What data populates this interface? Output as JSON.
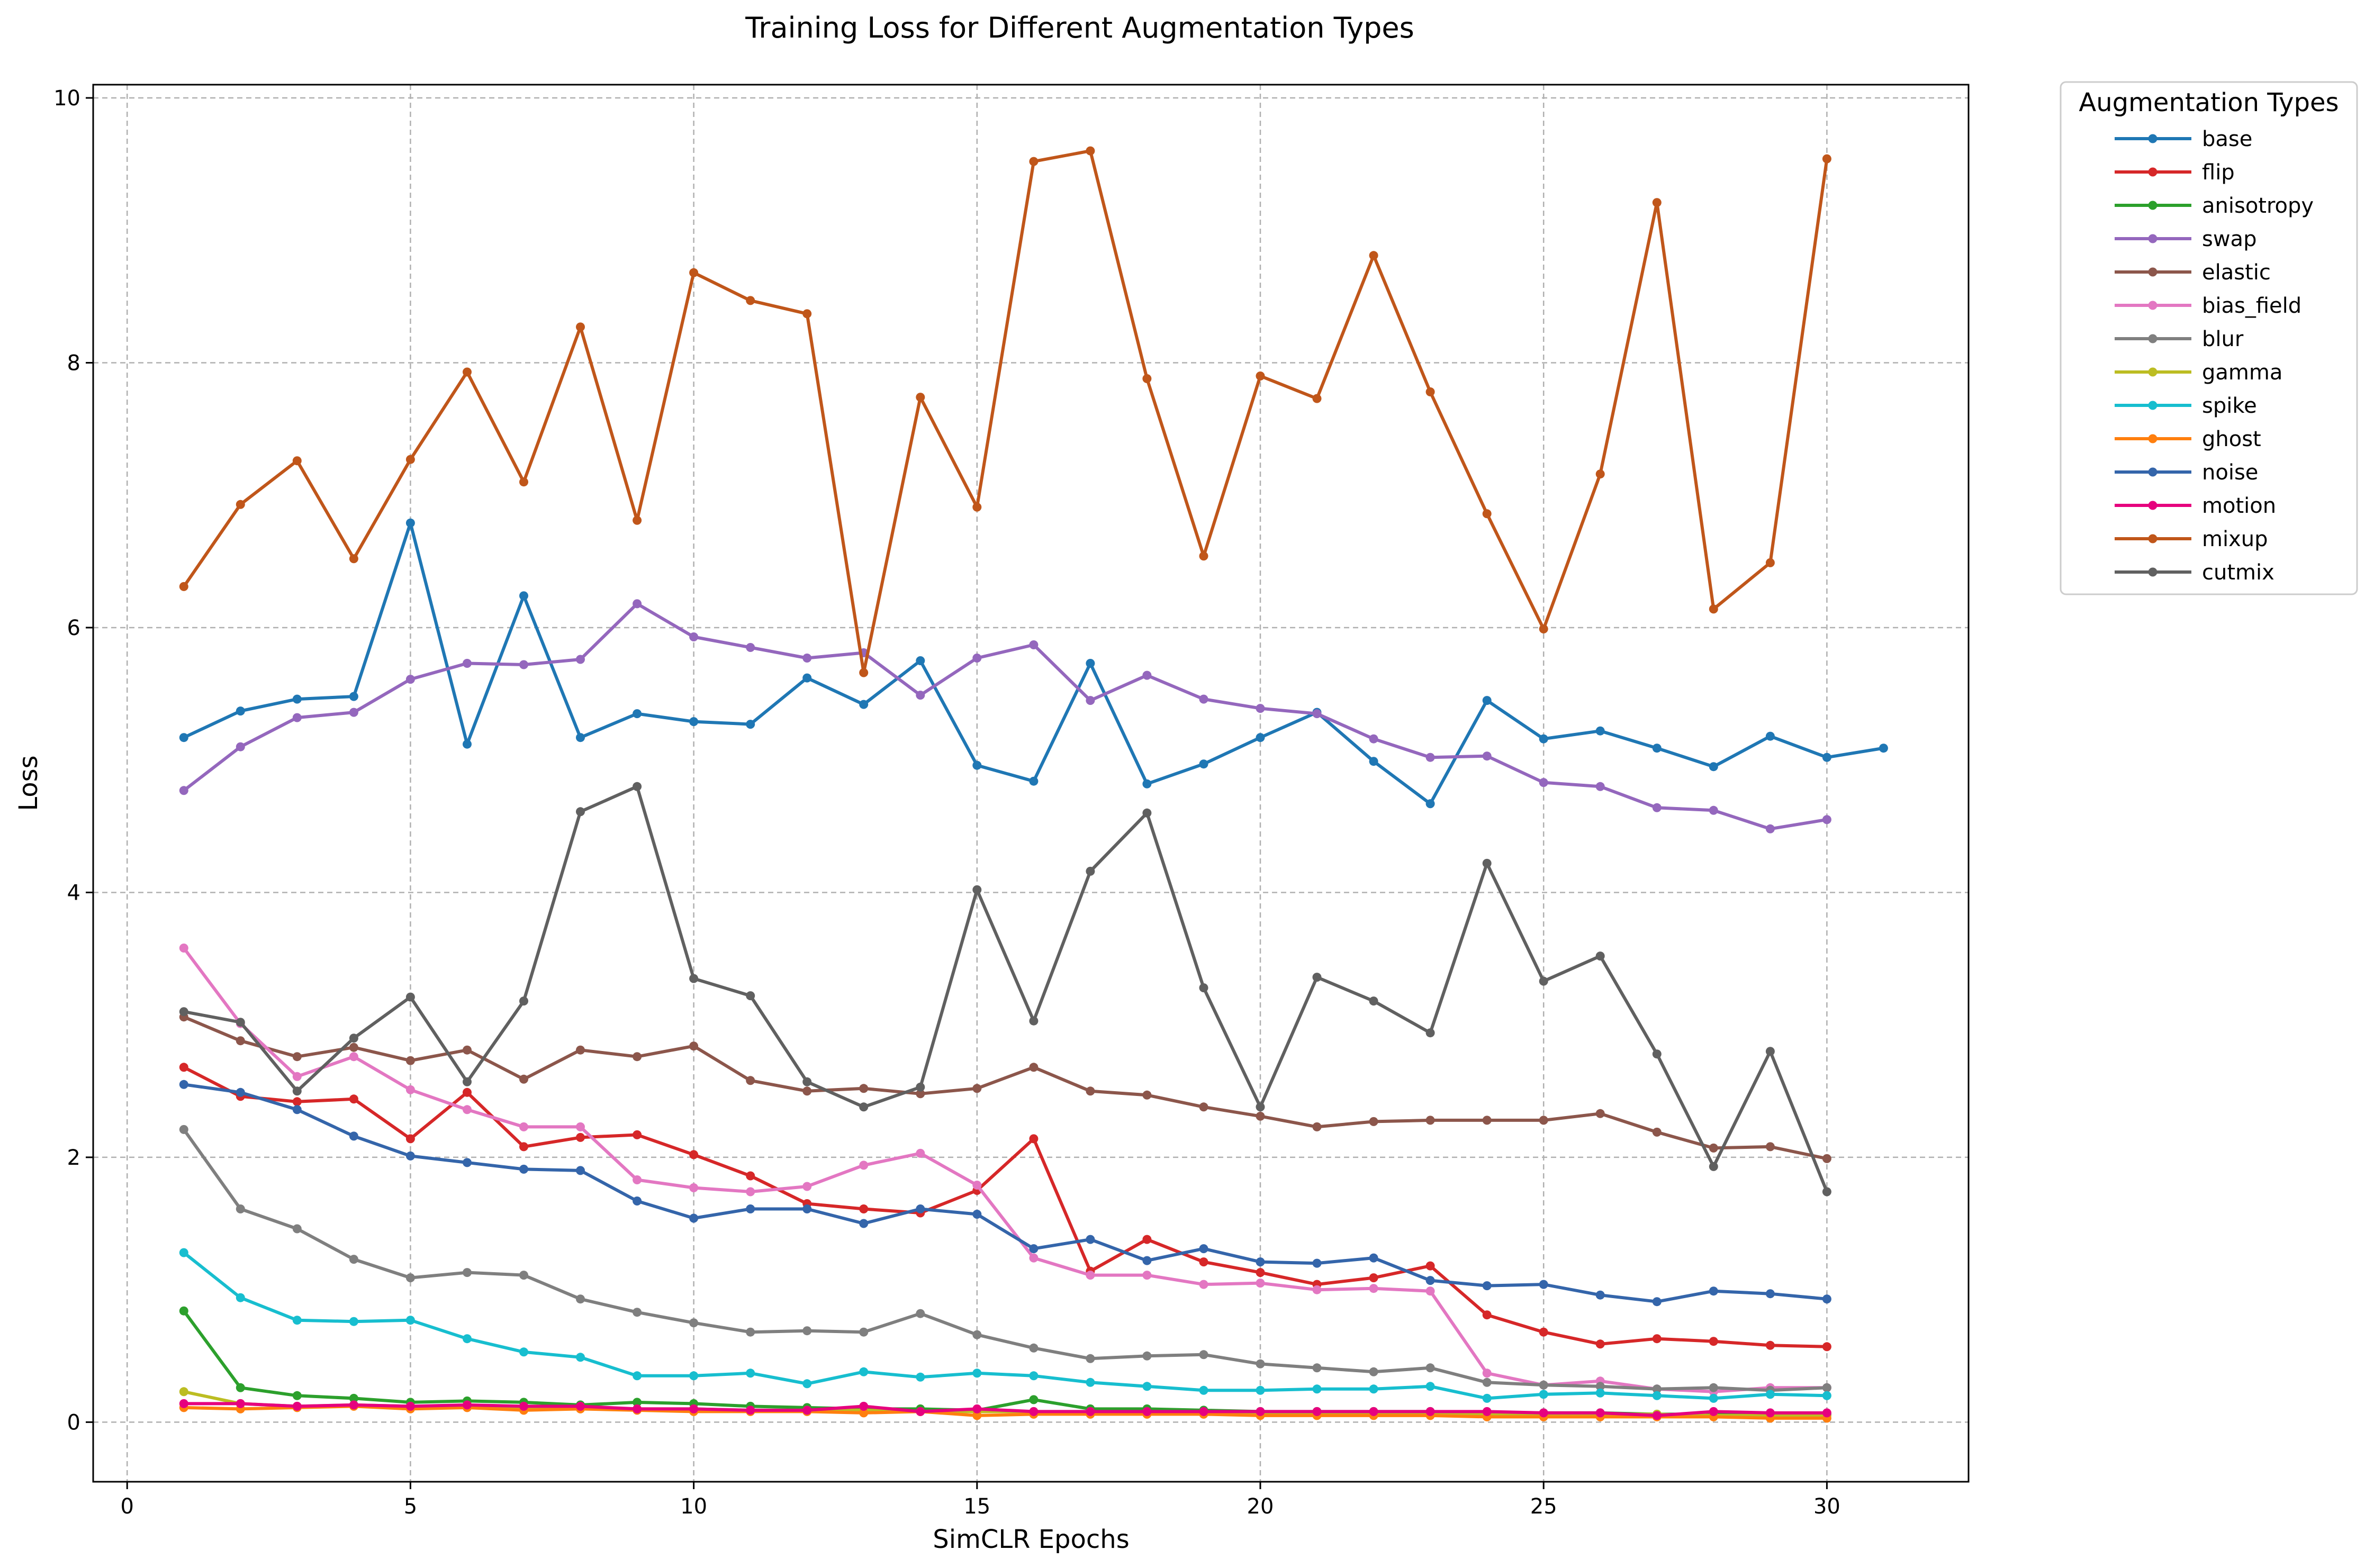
{
  "chart_data": {
    "type": "line",
    "title": "Training Loss for Different Augmentation Types",
    "xlabel": "SimCLR Epochs",
    "ylabel": "Loss",
    "xlim": [
      -0.6,
      32.5
    ],
    "ylim": [
      -0.45,
      10.1
    ],
    "xticks": [
      0,
      5,
      10,
      15,
      20,
      25,
      30
    ],
    "yticks": [
      0,
      2,
      4,
      6,
      8,
      10
    ],
    "grid": true,
    "legend": {
      "title": "Augmentation Types",
      "placement": "outside-right-top"
    },
    "series": [
      {
        "name": "base",
        "color": "#1f77b4",
        "x": [
          1,
          2,
          3,
          4,
          5,
          6,
          7,
          8,
          9,
          10,
          11,
          12,
          13,
          14,
          15,
          16,
          17,
          18,
          19,
          20,
          21,
          22,
          23,
          24,
          25,
          26,
          27,
          28,
          29,
          30,
          31
        ],
        "y": [
          5.17,
          5.37,
          5.46,
          5.48,
          6.79,
          5.12,
          6.24,
          5.17,
          5.35,
          5.29,
          5.27,
          5.62,
          5.42,
          5.75,
          4.96,
          4.84,
          5.73,
          4.82,
          4.97,
          5.17,
          5.36,
          4.99,
          4.67,
          5.45,
          5.16,
          5.22,
          5.09,
          4.95,
          5.18,
          5.02,
          5.09
        ]
      },
      {
        "name": "flip",
        "color": "#d62728",
        "x": [
          1,
          2,
          3,
          4,
          5,
          6,
          7,
          8,
          9,
          10,
          11,
          12,
          13,
          14,
          15,
          16,
          17,
          18,
          19,
          20,
          21,
          22,
          23,
          24,
          25,
          26,
          27,
          28,
          29,
          30
        ],
        "y": [
          2.68,
          2.46,
          2.42,
          2.44,
          2.14,
          2.49,
          2.08,
          2.15,
          2.17,
          2.02,
          1.86,
          1.65,
          1.61,
          1.58,
          1.75,
          2.14,
          1.14,
          1.38,
          1.21,
          1.13,
          1.04,
          1.09,
          1.18,
          0.81,
          0.68,
          0.59,
          0.63,
          0.61,
          0.58,
          0.57
        ]
      },
      {
        "name": "anisotropy",
        "color": "#2ca02c",
        "x": [
          1,
          2,
          3,
          4,
          5,
          6,
          7,
          8,
          9,
          10,
          11,
          12,
          13,
          14,
          15,
          16,
          17,
          18,
          19,
          20,
          21,
          22,
          23,
          24,
          25,
          26,
          27,
          28,
          29,
          30
        ],
        "y": [
          0.84,
          0.26,
          0.2,
          0.18,
          0.15,
          0.16,
          0.15,
          0.13,
          0.15,
          0.14,
          0.12,
          0.11,
          0.1,
          0.1,
          0.09,
          0.17,
          0.1,
          0.1,
          0.09,
          0.08,
          0.08,
          0.08,
          0.08,
          0.07,
          0.07,
          0.07,
          0.06,
          0.06,
          0.06,
          0.06
        ]
      },
      {
        "name": "swap",
        "color": "#9467bd",
        "x": [
          1,
          2,
          3,
          4,
          5,
          6,
          7,
          8,
          9,
          10,
          11,
          12,
          13,
          14,
          15,
          16,
          17,
          18,
          19,
          20,
          21,
          22,
          23,
          24,
          25,
          26,
          27,
          28,
          29,
          30
        ],
        "y": [
          4.77,
          5.1,
          5.32,
          5.36,
          5.61,
          5.73,
          5.72,
          5.76,
          6.18,
          5.93,
          5.85,
          5.77,
          5.81,
          5.49,
          5.77,
          5.87,
          5.45,
          5.64,
          5.46,
          5.39,
          5.35,
          5.16,
          5.02,
          5.03,
          4.83,
          4.8,
          4.64,
          4.62,
          4.48,
          4.55
        ]
      },
      {
        "name": "elastic",
        "color": "#8c564b",
        "x": [
          1,
          2,
          3,
          4,
          5,
          6,
          7,
          8,
          9,
          10,
          11,
          12,
          13,
          14,
          15,
          16,
          17,
          18,
          19,
          20,
          21,
          22,
          23,
          24,
          25,
          26,
          27,
          28,
          29,
          30
        ],
        "y": [
          3.06,
          2.88,
          2.76,
          2.83,
          2.73,
          2.81,
          2.59,
          2.81,
          2.76,
          2.84,
          2.58,
          2.5,
          2.52,
          2.48,
          2.52,
          2.68,
          2.5,
          2.47,
          2.38,
          2.31,
          2.23,
          2.27,
          2.28,
          2.28,
          2.28,
          2.33,
          2.19,
          2.07,
          2.08,
          1.99
        ]
      },
      {
        "name": "bias_field",
        "color": "#e377c2",
        "x": [
          1,
          2,
          3,
          4,
          5,
          6,
          7,
          8,
          9,
          10,
          11,
          12,
          13,
          14,
          15,
          16,
          17,
          18,
          19,
          20,
          21,
          22,
          23,
          24,
          25,
          26,
          27,
          28,
          29,
          30
        ],
        "y": [
          3.58,
          3.01,
          2.61,
          2.76,
          2.51,
          2.36,
          2.23,
          2.23,
          1.83,
          1.77,
          1.74,
          1.78,
          1.94,
          2.03,
          1.79,
          1.24,
          1.11,
          1.11,
          1.04,
          1.05,
          1.0,
          1.01,
          0.99,
          0.37,
          0.28,
          0.31,
          0.25,
          0.23,
          0.26,
          0.26
        ]
      },
      {
        "name": "blur",
        "color": "#7f7f7f",
        "x": [
          1,
          2,
          3,
          4,
          5,
          6,
          7,
          8,
          9,
          10,
          11,
          12,
          13,
          14,
          15,
          16,
          17,
          18,
          19,
          20,
          21,
          22,
          23,
          24,
          25,
          26,
          27,
          28,
          29,
          30
        ],
        "y": [
          2.21,
          1.61,
          1.46,
          1.23,
          1.09,
          1.13,
          1.11,
          0.93,
          0.83,
          0.75,
          0.68,
          0.69,
          0.68,
          0.82,
          0.66,
          0.56,
          0.48,
          0.5,
          0.51,
          0.44,
          0.41,
          0.38,
          0.41,
          0.3,
          0.28,
          0.27,
          0.25,
          0.26,
          0.24,
          0.26
        ]
      },
      {
        "name": "gamma",
        "color": "#bcbd22",
        "x": [
          1,
          2,
          3,
          4,
          5,
          6,
          7,
          8,
          9,
          10,
          11,
          12,
          13,
          14,
          15,
          16,
          17,
          18,
          19,
          20,
          21,
          22,
          23,
          24,
          25,
          26,
          27,
          28,
          29,
          30
        ],
        "y": [
          0.23,
          0.14,
          0.12,
          0.13,
          0.12,
          0.12,
          0.11,
          0.11,
          0.1,
          0.1,
          0.09,
          0.09,
          0.09,
          0.08,
          0.08,
          0.08,
          0.08,
          0.07,
          0.07,
          0.07,
          0.07,
          0.07,
          0.07,
          0.06,
          0.06,
          0.06,
          0.06,
          0.05,
          0.05,
          0.05
        ]
      },
      {
        "name": "spike",
        "color": "#17becf",
        "x": [
          1,
          2,
          3,
          4,
          5,
          6,
          7,
          8,
          9,
          10,
          11,
          12,
          13,
          14,
          15,
          16,
          17,
          18,
          19,
          20,
          21,
          22,
          23,
          24,
          25,
          26,
          27,
          28,
          29,
          30
        ],
        "y": [
          1.28,
          0.94,
          0.77,
          0.76,
          0.77,
          0.63,
          0.53,
          0.49,
          0.35,
          0.35,
          0.37,
          0.29,
          0.38,
          0.34,
          0.37,
          0.35,
          0.3,
          0.27,
          0.24,
          0.24,
          0.25,
          0.25,
          0.27,
          0.18,
          0.21,
          0.22,
          0.2,
          0.18,
          0.21,
          0.2
        ]
      },
      {
        "name": "ghost",
        "color": "#ff7f0e",
        "x": [
          1,
          2,
          3,
          4,
          5,
          6,
          7,
          8,
          9,
          10,
          11,
          12,
          13,
          14,
          15,
          16,
          17,
          18,
          19,
          20,
          21,
          22,
          23,
          24,
          25,
          26,
          27,
          28,
          29,
          30
        ],
        "y": [
          0.11,
          0.1,
          0.11,
          0.12,
          0.1,
          0.11,
          0.09,
          0.1,
          0.09,
          0.08,
          0.08,
          0.08,
          0.07,
          0.08,
          0.05,
          0.06,
          0.06,
          0.06,
          0.06,
          0.05,
          0.05,
          0.05,
          0.05,
          0.04,
          0.04,
          0.04,
          0.04,
          0.04,
          0.03,
          0.03
        ]
      },
      {
        "name": "noise",
        "color": "#3465aa",
        "x": [
          1,
          2,
          3,
          4,
          5,
          6,
          7,
          8,
          9,
          10,
          11,
          12,
          13,
          14,
          15,
          16,
          17,
          18,
          19,
          20,
          21,
          22,
          23,
          24,
          25,
          26,
          27,
          28,
          29,
          30
        ],
        "y": [
          2.55,
          2.49,
          2.36,
          2.16,
          2.01,
          1.96,
          1.91,
          1.9,
          1.67,
          1.54,
          1.61,
          1.61,
          1.5,
          1.61,
          1.57,
          1.31,
          1.38,
          1.22,
          1.31,
          1.21,
          1.2,
          1.24,
          1.07,
          1.03,
          1.04,
          0.96,
          0.91,
          0.99,
          0.97,
          0.93
        ]
      },
      {
        "name": "motion",
        "color": "#e6007e",
        "x": [
          1,
          2,
          3,
          4,
          5,
          6,
          7,
          8,
          9,
          10,
          11,
          12,
          13,
          14,
          15,
          16,
          17,
          18,
          19,
          20,
          21,
          22,
          23,
          24,
          25,
          26,
          27,
          28,
          29,
          30
        ],
        "y": [
          0.14,
          0.14,
          0.12,
          0.13,
          0.12,
          0.13,
          0.12,
          0.12,
          0.1,
          0.1,
          0.09,
          0.09,
          0.12,
          0.08,
          0.1,
          0.08,
          0.08,
          0.08,
          0.08,
          0.08,
          0.08,
          0.08,
          0.08,
          0.08,
          0.07,
          0.07,
          0.05,
          0.08,
          0.07,
          0.07
        ]
      },
      {
        "name": "mixup",
        "color": "#c0561a",
        "x": [
          1,
          2,
          3,
          4,
          5,
          6,
          7,
          8,
          9,
          10,
          11,
          12,
          13,
          14,
          15,
          16,
          17,
          18,
          19,
          20,
          21,
          22,
          23,
          24,
          25,
          26,
          27,
          28,
          29,
          30
        ],
        "y": [
          6.31,
          6.93,
          7.26,
          6.52,
          7.27,
          7.93,
          7.1,
          8.27,
          6.81,
          8.68,
          8.47,
          8.37,
          5.66,
          7.74,
          6.91,
          9.52,
          9.6,
          7.88,
          6.54,
          7.9,
          7.73,
          8.81,
          7.78,
          6.86,
          5.99,
          7.16,
          9.21,
          6.14,
          6.49,
          9.54
        ]
      },
      {
        "name": "cutmix",
        "color": "#606060",
        "x": [
          1,
          2,
          3,
          4,
          5,
          6,
          7,
          8,
          9,
          10,
          11,
          12,
          13,
          14,
          15,
          16,
          17,
          18,
          19,
          20,
          21,
          22,
          23,
          24,
          25,
          26,
          27,
          28,
          29,
          30
        ],
        "y": [
          3.1,
          3.02,
          2.5,
          2.9,
          3.21,
          2.57,
          3.18,
          4.61,
          4.8,
          3.35,
          3.22,
          2.57,
          2.38,
          2.53,
          4.02,
          3.03,
          4.16,
          4.6,
          3.28,
          2.38,
          3.36,
          3.18,
          2.94,
          4.22,
          3.33,
          3.52,
          2.78,
          1.93,
          2.8,
          1.74
        ]
      }
    ]
  }
}
